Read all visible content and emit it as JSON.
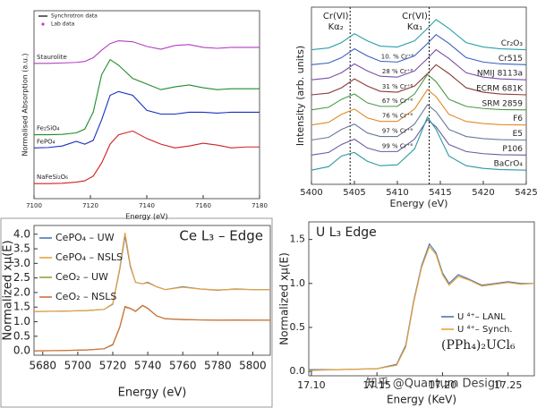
{
  "chart_data": [
    {
      "type": "line",
      "x_label": "Energy (eV)",
      "y_label": "Normalised Absorption (a.u.)",
      "xlim": [
        7100,
        7180
      ],
      "ylim": [
        0,
        10
      ],
      "xticks": [
        7100,
        7120,
        7140,
        7160,
        7180
      ],
      "direct_labels": true,
      "legend_loc": "upper left",
      "legend": [
        {
          "name": "Synchrotron data",
          "color": "#000000",
          "marker": "line"
        },
        {
          "name": "Lab data",
          "color": "#c83cc8",
          "marker": "dot"
        }
      ],
      "x": [
        7100,
        7105,
        7110,
        7115,
        7118,
        7121,
        7124,
        7127,
        7130,
        7135,
        7140,
        7145,
        7150,
        7155,
        7160,
        7165,
        7170,
        7175,
        7180
      ],
      "series": [
        {
          "name": "Staurolite",
          "color": "#b23ec0",
          "values": [
            7.2,
            7.2,
            7.22,
            7.25,
            7.3,
            7.5,
            7.9,
            8.25,
            8.4,
            8.35,
            8.1,
            7.95,
            8.15,
            8.2,
            8.05,
            8.0,
            8.05,
            8.05,
            8.05
          ]
        },
        {
          "name": "Fe₂SiO₄",
          "color": "#1f8a2a",
          "values": [
            3.4,
            3.4,
            3.42,
            3.5,
            3.7,
            4.6,
            6.6,
            7.4,
            7.1,
            6.4,
            6.1,
            5.8,
            5.95,
            6.05,
            5.9,
            5.8,
            5.85,
            5.85,
            5.85
          ]
        },
        {
          "name": "FePO₄",
          "color": "#1a2ec0",
          "values": [
            2.7,
            2.72,
            2.8,
            3.05,
            2.9,
            3.1,
            4.2,
            5.5,
            5.7,
            5.5,
            4.7,
            4.5,
            4.5,
            4.6,
            4.6,
            4.55,
            4.6,
            4.6,
            4.6
          ]
        },
        {
          "name": "NaFeSi₂O₆",
          "color": "#d02020",
          "values": [
            0.8,
            0.8,
            0.82,
            0.88,
            0.95,
            1.2,
            1.9,
            2.9,
            3.4,
            3.6,
            3.2,
            2.9,
            2.7,
            2.8,
            2.95,
            2.85,
            2.7,
            2.75,
            2.75
          ]
        }
      ]
    },
    {
      "type": "line",
      "x_label": "Energy (eV)",
      "y_label": "Intensity (arb. units)",
      "xlim": [
        5400,
        5425
      ],
      "ylim": [
        0,
        10
      ],
      "xticks": [
        5400,
        5405,
        5410,
        5415,
        5420,
        5425
      ],
      "direct_labels": true,
      "reference_lines": [
        {
          "value": 5404.5,
          "label": [
            "Cr(VI)",
            "Kα₂"
          ]
        },
        {
          "value": 5413.7,
          "label": [
            "Cr(VI)",
            "Kα₁"
          ]
        }
      ],
      "percent_labels": [
        "10. % Cr⁺⁶",
        "28 % Cr⁺⁶",
        "31 % Cr⁺⁶",
        "67 % Cr⁺⁶",
        "76 % Cr⁺⁶",
        "97 % Cr⁺⁶",
        "99 % Cr⁺⁶"
      ],
      "x": [
        5400,
        5402,
        5403.5,
        5405,
        5406.5,
        5408,
        5410,
        5412,
        5413.5,
        5414.5,
        5416,
        5418,
        5420,
        5422,
        5425
      ],
      "series": [
        {
          "name": "Cr₂O₃",
          "color": "#2aa0a8",
          "values": [
            7.6,
            7.7,
            8.0,
            8.5,
            8.1,
            7.8,
            7.75,
            8.1,
            8.8,
            9.3,
            8.8,
            8.0,
            7.75,
            7.65,
            7.6
          ]
        },
        {
          "name": "Cr515",
          "color": "#3b5fc0",
          "values": [
            6.75,
            6.85,
            7.15,
            7.65,
            7.25,
            6.95,
            6.9,
            7.25,
            7.95,
            8.45,
            7.95,
            7.15,
            6.9,
            6.8,
            6.75
          ]
        },
        {
          "name": "NMIJ 8113a",
          "color": "#7b4fa8",
          "values": [
            5.9,
            6.0,
            6.3,
            6.8,
            6.4,
            6.1,
            6.05,
            6.4,
            7.1,
            7.6,
            7.1,
            6.3,
            6.05,
            5.95,
            5.9
          ]
        },
        {
          "name": "ECRM 681K",
          "color": "#8b3a3a",
          "values": [
            5.05,
            5.15,
            5.45,
            5.95,
            5.55,
            5.25,
            5.2,
            5.55,
            6.25,
            6.75,
            6.25,
            5.45,
            5.2,
            5.1,
            5.05
          ]
        },
        {
          "name": "SRM 2859",
          "color": "#4a9a4a",
          "values": [
            4.2,
            4.35,
            4.8,
            5.1,
            4.6,
            4.4,
            4.4,
            5.1,
            6.2,
            5.8,
            4.8,
            4.4,
            4.28,
            4.22,
            4.2
          ]
        },
        {
          "name": "F6",
          "color": "#e08a2a",
          "values": [
            3.35,
            3.5,
            3.95,
            4.25,
            3.75,
            3.55,
            3.55,
            4.25,
            5.35,
            4.95,
            3.95,
            3.55,
            3.43,
            3.37,
            3.35
          ]
        },
        {
          "name": "E5",
          "color": "#6a7a9a",
          "values": [
            2.5,
            2.65,
            3.1,
            3.4,
            2.9,
            2.7,
            2.7,
            3.4,
            4.5,
            4.1,
            3.1,
            2.7,
            2.58,
            2.52,
            2.5
          ]
        },
        {
          "name": "P106",
          "color": "#6a5aa0",
          "values": [
            1.65,
            1.8,
            2.25,
            2.55,
            2.05,
            1.85,
            1.85,
            2.55,
            3.65,
            3.25,
            2.25,
            1.85,
            1.73,
            1.67,
            1.65
          ]
        },
        {
          "name": "BaCrO₄",
          "color": "#2a9aa0",
          "values": [
            0.8,
            1.0,
            1.6,
            1.8,
            1.3,
            1.05,
            1.1,
            2.0,
            3.8,
            3.1,
            1.6,
            1.05,
            0.9,
            0.83,
            0.8
          ]
        }
      ]
    },
    {
      "type": "line",
      "title": "Ce L₃ – Edge",
      "x_label": "Energy (eV)",
      "y_label": "Normalized xμ(E)",
      "xlim": [
        5675,
        5810
      ],
      "ylim": [
        -0.15,
        4.3
      ],
      "xticks": [
        5680,
        5700,
        5720,
        5740,
        5760,
        5780,
        5800
      ],
      "yticks": [
        {
          "value": 0,
          "label": "0.0"
        },
        0.5,
        {
          "value": 1,
          "label": "1.0"
        },
        1.5,
        {
          "value": 2,
          "label": "2.0"
        },
        2.5,
        {
          "value": 3,
          "label": "3.0"
        },
        3.5,
        {
          "value": 4,
          "label": "4.0"
        }
      ],
      "legend_loc": "upper left",
      "x": [
        5675,
        5690,
        5705,
        5715,
        5720,
        5724,
        5727,
        5730,
        5733,
        5737,
        5740,
        5745,
        5750,
        5760,
        5770,
        5780,
        5790,
        5800,
        5810
      ],
      "series": [
        {
          "name": "CePO₄ – UW",
          "color": "#4a78b5",
          "values": [
            1.35,
            1.36,
            1.38,
            1.42,
            1.6,
            2.8,
            3.95,
            2.9,
            2.35,
            2.3,
            2.35,
            2.2,
            2.1,
            2.2,
            2.12,
            2.08,
            2.12,
            2.1,
            2.1
          ]
        },
        {
          "name": "CePO₄ – NSLS",
          "color": "#e8a33d",
          "values": [
            1.35,
            1.36,
            1.38,
            1.42,
            1.62,
            2.85,
            4.05,
            2.95,
            2.35,
            2.3,
            2.33,
            2.2,
            2.1,
            2.18,
            2.12,
            2.09,
            2.11,
            2.1,
            2.1
          ]
        },
        {
          "name": "CeO₂ – UW",
          "color": "#94a13a",
          "values": [
            0,
            0.01,
            0.03,
            0.07,
            0.2,
            0.8,
            1.5,
            1.45,
            1.35,
            1.55,
            1.45,
            1.2,
            1.1,
            1.08,
            1.06,
            1.05,
            1.06,
            1.05,
            1.05
          ]
        },
        {
          "name": "CeO₂ – NSLS",
          "color": "#d2713c",
          "values": [
            0,
            0.01,
            0.03,
            0.07,
            0.22,
            0.82,
            1.52,
            1.46,
            1.36,
            1.56,
            1.46,
            1.2,
            1.1,
            1.07,
            1.06,
            1.05,
            1.05,
            1.05,
            1.05
          ]
        }
      ]
    },
    {
      "type": "line",
      "title": "U L₃ Edge",
      "x_label": "Energy (KeV)",
      "y_label": "Normalized xμ(E)",
      "annotation": "(PPh₄)₂UCl₆",
      "watermark": "知乎 @Quantum Design",
      "xlim": [
        17.098,
        17.27
      ],
      "ylim": [
        -0.05,
        1.7
      ],
      "xticks": [
        {
          "value": 17.1,
          "label": "17.10"
        },
        17.15,
        {
          "value": 17.2,
          "label": "17.20"
        },
        17.25
      ],
      "yticks": [
        {
          "value": 0,
          "label": "0.0"
        },
        0.5,
        {
          "value": 1,
          "label": "1.0"
        },
        1.5
      ],
      "legend_loc": "center right",
      "x": [
        17.098,
        17.12,
        17.15,
        17.165,
        17.172,
        17.178,
        17.184,
        17.19,
        17.195,
        17.2,
        17.205,
        17.212,
        17.22,
        17.23,
        17.24,
        17.25,
        17.26,
        17.27
      ],
      "series": [
        {
          "name": "U ⁴⁺– LANL",
          "color": "#4a78b5",
          "values": [
            0.02,
            0.02,
            0.03,
            0.08,
            0.3,
            0.8,
            1.2,
            1.45,
            1.35,
            1.12,
            1.0,
            1.1,
            1.05,
            0.98,
            1.0,
            1.02,
            1.0,
            1.0
          ]
        },
        {
          "name": "U ⁴⁺– Synch.",
          "color": "#e8a33d",
          "values": [
            0.01,
            0.02,
            0.03,
            0.07,
            0.28,
            0.78,
            1.18,
            1.42,
            1.33,
            1.1,
            0.98,
            1.08,
            1.04,
            0.97,
            0.99,
            1.01,
            0.99,
            1.0
          ]
        }
      ]
    }
  ]
}
